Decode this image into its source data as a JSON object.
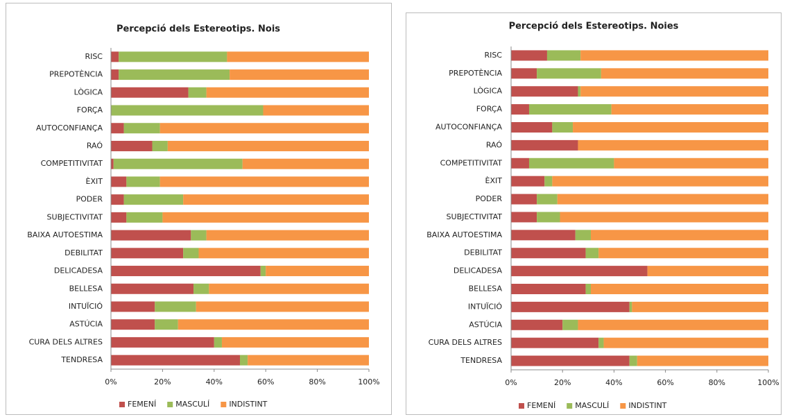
{
  "chart_data": [
    {
      "type": "stacked_barh",
      "title": "Percepció dels Estereotips. Nois",
      "categories": [
        "RISC",
        "PREPOTÈNCIA",
        "LÒGICA",
        "FORÇA",
        "AUTOCONFIANÇA",
        "RAÓ",
        "COMPETITIVITAT",
        "ÈXIT",
        "PODER",
        "SUBJECTIVITAT",
        "BAIXA AUTOESTIMA",
        "DEBILITAT",
        "DELICADESA",
        "BELLESA",
        "INTUÏCIÓ",
        "ASTÚCIA",
        "CURA DELS ALTRES",
        "TENDRESA"
      ],
      "series": [
        {
          "name": "FEMENÍ",
          "color": "#c0504d",
          "values": [
            3,
            3,
            30,
            0,
            5,
            16,
            1,
            6,
            5,
            6,
            31,
            28,
            58,
            32,
            17,
            17,
            40,
            50
          ]
        },
        {
          "name": "MASCULÍ",
          "color": "#9bbb59",
          "values": [
            42,
            43,
            7,
            59,
            14,
            6,
            50,
            13,
            23,
            14,
            6,
            6,
            2,
            6,
            16,
            9,
            3,
            3
          ]
        },
        {
          "name": "INDISTINT",
          "color": "#f79646",
          "values": [
            55,
            54,
            63,
            41,
            81,
            78,
            49,
            81,
            72,
            80,
            63,
            66,
            40,
            62,
            67,
            74,
            57,
            47
          ]
        }
      ],
      "xlim": [
        0,
        100
      ],
      "xticks": [
        {
          "value": 0,
          "label": "0%"
        },
        {
          "value": 20,
          "label": "20%"
        },
        {
          "value": 40,
          "label": "40%"
        },
        {
          "value": 60,
          "label": "60%"
        },
        {
          "value": 80,
          "label": "80%"
        },
        {
          "value": 100,
          "label": "100%"
        }
      ],
      "legend": "bottom"
    },
    {
      "type": "stacked_barh",
      "title": "Percepció dels Estereotips. Noies",
      "categories": [
        "RISC",
        "PREPOTÈNCIA",
        "LÒGICA",
        "FORÇA",
        "AUTOCONFIANÇA",
        "RAÓ",
        "COMPETITIVITAT",
        "ÈXIT",
        "PODER",
        "SUBJECTIVITAT",
        "BAIXA AUTOESTIMA",
        "DEBILITAT",
        "DELICADESA",
        "BELLESA",
        "INTUÏCIÓ",
        "ASTÚCIA",
        "CURA DELS ALTRES",
        "TENDRESA"
      ],
      "series": [
        {
          "name": "FEMENÍ",
          "color": "#c0504d",
          "values": [
            14,
            10,
            26,
            7,
            16,
            26,
            7,
            13,
            10,
            10,
            25,
            29,
            53,
            29,
            46,
            20,
            34,
            46
          ]
        },
        {
          "name": "MASCULÍ",
          "color": "#9bbb59",
          "values": [
            13,
            25,
            1,
            32,
            8,
            0,
            33,
            3,
            8,
            9,
            6,
            5,
            0,
            2,
            1,
            6,
            2,
            3
          ]
        },
        {
          "name": "INDISTINT",
          "color": "#f79646",
          "values": [
            73,
            65,
            73,
            61,
            76,
            74,
            60,
            84,
            82,
            81,
            69,
            66,
            47,
            69,
            53,
            74,
            64,
            51
          ]
        }
      ],
      "xlim": [
        0,
        100
      ],
      "xticks": [
        {
          "value": 0,
          "label": "0%"
        },
        {
          "value": 20,
          "label": "20%"
        },
        {
          "value": 40,
          "label": "40%"
        },
        {
          "value": 60,
          "label": "60%"
        },
        {
          "value": 80,
          "label": "80%"
        },
        {
          "value": 100,
          "label": "100%"
        }
      ],
      "legend": "bottom"
    }
  ]
}
